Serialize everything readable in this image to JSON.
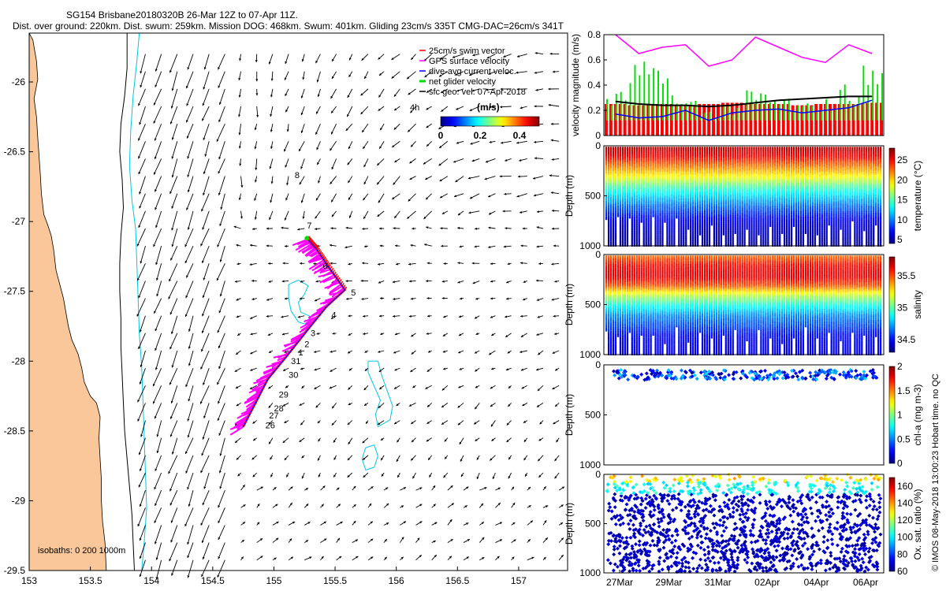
{
  "title_line1": "SG154 Brisbane20180320B 26-Mar 12Z to 07-Apr 11Z.",
  "title_line2": "Dist. over ground: 220km. Dist. swum: 259km. Mission DOG: 468km. Swum: 401km. Gliding 23cm/s 335T CMG-DAC=26cm/s 341T",
  "credit": "© IMOS 08-May-2018 13:00:23 Hobart time. no QC",
  "colors": {
    "land": "#F9C79A",
    "swim": "#ff0000",
    "gps": "#ff00ff",
    "dac": "#0000ff",
    "net": "#00dd00",
    "sfc": "#000000",
    "isobath200": "#000000",
    "isobath1000": "#00c8e0"
  },
  "chart_data": [
    {
      "id": "map",
      "type": "scatter",
      "x_ticks": [
        "153",
        "153.5",
        "154",
        "154.5",
        "155",
        "155.5",
        "156",
        "156.5",
        "157"
      ],
      "y_ticks": [
        "-26",
        "-26.5",
        "-27",
        "-27.5",
        "-28",
        "-28.5",
        "-29",
        "-29.5"
      ],
      "xlim": [
        153,
        157.4
      ],
      "ylim": [
        -29.5,
        -25.65
      ],
      "legend": [
        "25cm/s swim vector",
        "GPS surface velocity",
        "dive-avg current veloc.",
        "net glider velocity",
        "sfc geo. vel. 07-Apr-2018"
      ],
      "legend_placement": "top-right",
      "speed_colorbar": {
        "label": "(m/s)",
        "ticks": [
          "0",
          "0.2",
          "0.4"
        ],
        "range": [
          0,
          0.5
        ]
      },
      "annotation_4h": "4h",
      "isobaths_label": "isobaths: 0   200   1000m",
      "day_labels": [
        {
          "t": "8",
          "x": 155.17,
          "y": -26.69
        },
        {
          "t": "7",
          "x": 155.27,
          "y": -27.05
        },
        {
          "t": "6",
          "x": 155.4,
          "y": -27.34
        },
        {
          "t": "5",
          "x": 155.63,
          "y": -27.53
        },
        {
          "t": "4",
          "x": 155.47,
          "y": -27.69
        },
        {
          "t": "3",
          "x": 155.3,
          "y": -27.82
        },
        {
          "t": "2",
          "x": 155.25,
          "y": -27.9
        },
        {
          "t": "1",
          "x": 155.2,
          "y": -27.96
        },
        {
          "t": "31",
          "x": 155.14,
          "y": -28.02
        },
        {
          "t": "30",
          "x": 155.12,
          "y": -28.12
        },
        {
          "t": "29",
          "x": 155.04,
          "y": -28.26
        },
        {
          "t": "28",
          "x": 155.0,
          "y": -28.36
        },
        {
          "t": "27",
          "x": 154.96,
          "y": -28.41
        },
        {
          "t": "26",
          "x": 154.93,
          "y": -28.48
        }
      ],
      "track": [
        [
          154.75,
          -28.47
        ],
        [
          154.85,
          -28.3
        ],
        [
          154.95,
          -28.13
        ],
        [
          155.1,
          -27.97
        ],
        [
          155.3,
          -27.75
        ],
        [
          155.43,
          -27.61
        ],
        [
          155.58,
          -27.49
        ],
        [
          155.45,
          -27.33
        ],
        [
          155.35,
          -27.2
        ],
        [
          155.27,
          -27.12
        ]
      ],
      "coastline": [
        [
          153.03,
          -25.7
        ],
        [
          153.06,
          -25.85
        ],
        [
          153.07,
          -25.98
        ],
        [
          153.04,
          -26.12
        ],
        [
          153.06,
          -26.25
        ],
        [
          153.07,
          -26.4
        ],
        [
          153.08,
          -26.52
        ],
        [
          153.09,
          -26.65
        ],
        [
          153.1,
          -26.8
        ],
        [
          153.12,
          -26.95
        ],
        [
          153.15,
          -27.02
        ],
        [
          153.18,
          -27.1
        ],
        [
          153.2,
          -27.2
        ],
        [
          153.22,
          -27.35
        ],
        [
          153.25,
          -27.45
        ],
        [
          153.28,
          -27.55
        ],
        [
          153.3,
          -27.65
        ],
        [
          153.32,
          -27.75
        ],
        [
          153.35,
          -27.85
        ],
        [
          153.4,
          -27.95
        ],
        [
          153.43,
          -28.05
        ],
        [
          153.45,
          -28.15
        ],
        [
          153.5,
          -28.25
        ],
        [
          153.55,
          -28.3
        ],
        [
          153.58,
          -28.4
        ],
        [
          153.57,
          -28.55
        ],
        [
          153.58,
          -28.7
        ],
        [
          153.59,
          -28.85
        ],
        [
          153.59,
          -29.0
        ],
        [
          153.6,
          -29.15
        ],
        [
          153.62,
          -29.3
        ],
        [
          153.63,
          -29.5
        ]
      ],
      "isobath_200": [
        [
          153.8,
          -25.65
        ],
        [
          153.8,
          -25.9
        ],
        [
          153.78,
          -26.1
        ],
        [
          153.75,
          -26.3
        ],
        [
          153.74,
          -26.5
        ],
        [
          153.76,
          -26.7
        ],
        [
          153.77,
          -26.9
        ],
        [
          153.75,
          -27.1
        ],
        [
          153.74,
          -27.3
        ],
        [
          153.74,
          -27.5
        ],
        [
          153.75,
          -27.7
        ],
        [
          153.75,
          -27.9
        ],
        [
          153.76,
          -28.1
        ],
        [
          153.77,
          -28.3
        ],
        [
          153.78,
          -28.5
        ],
        [
          153.8,
          -28.7
        ],
        [
          153.82,
          -28.9
        ],
        [
          153.84,
          -29.1
        ],
        [
          153.85,
          -29.3
        ],
        [
          153.86,
          -29.5
        ]
      ],
      "isobath_1000": [
        [
          153.9,
          -25.65
        ],
        [
          153.88,
          -25.85
        ],
        [
          153.85,
          -26.1
        ],
        [
          153.83,
          -26.35
        ],
        [
          153.82,
          -26.6
        ],
        [
          153.84,
          -26.85
        ],
        [
          153.87,
          -27.05
        ],
        [
          153.88,
          -27.3
        ],
        [
          153.89,
          -27.55
        ],
        [
          153.9,
          -27.8
        ],
        [
          153.92,
          -28.05
        ],
        [
          153.93,
          -28.3
        ],
        [
          153.94,
          -28.55
        ],
        [
          153.95,
          -28.8
        ],
        [
          153.96,
          -29.05
        ],
        [
          153.94,
          -29.3
        ],
        [
          153.92,
          -29.5
        ]
      ],
      "seamount_a": [
        [
          155.12,
          -27.45
        ],
        [
          155.2,
          -27.42
        ],
        [
          155.28,
          -27.46
        ],
        [
          155.25,
          -27.52
        ],
        [
          155.2,
          -27.58
        ],
        [
          155.22,
          -27.65
        ],
        [
          155.3,
          -27.68
        ],
        [
          155.28,
          -27.74
        ],
        [
          155.2,
          -27.72
        ],
        [
          155.14,
          -27.64
        ],
        [
          155.12,
          -27.55
        ],
        [
          155.12,
          -27.45
        ]
      ],
      "seamount_b": [
        [
          155.77,
          -28.0
        ],
        [
          155.85,
          -28.0
        ],
        [
          155.88,
          -28.1
        ],
        [
          155.92,
          -28.2
        ],
        [
          155.97,
          -28.32
        ],
        [
          155.95,
          -28.42
        ],
        [
          155.85,
          -28.47
        ],
        [
          155.83,
          -28.38
        ],
        [
          155.87,
          -28.28
        ],
        [
          155.82,
          -28.18
        ],
        [
          155.77,
          -28.08
        ],
        [
          155.77,
          -28.0
        ]
      ],
      "seamount_c": [
        [
          155.75,
          -28.62
        ],
        [
          155.82,
          -28.6
        ],
        [
          155.85,
          -28.68
        ],
        [
          155.82,
          -28.76
        ],
        [
          155.75,
          -28.78
        ],
        [
          155.72,
          -28.7
        ],
        [
          155.75,
          -28.62
        ]
      ]
    },
    {
      "id": "velocity_magnitude",
      "type": "bar",
      "ylabel": "velocity magnitude (m/s)",
      "ylim": [
        0,
        0.8
      ],
      "y_ticks": [
        "0",
        "0.2",
        "0.4",
        "0.6",
        "0.8"
      ],
      "series": [
        {
          "name": "25cm/s swim vector",
          "values": [
            0.25,
            0.24,
            0.25,
            0.24,
            0.25,
            0.26,
            0.25,
            0.25,
            0.24,
            0.25,
            0.25,
            0.26
          ]
        },
        {
          "name": "GPS surface velocity",
          "values": [
            0.8,
            0.65,
            0.7,
            0.72,
            0.55,
            0.6,
            0.78,
            0.7,
            0.62,
            0.58,
            0.72,
            0.65
          ]
        },
        {
          "name": "dive-avg current veloc.",
          "values": [
            0.17,
            0.14,
            0.15,
            0.2,
            0.12,
            0.18,
            0.2,
            0.21,
            0.18,
            0.2,
            0.22,
            0.28
          ]
        },
        {
          "name": "net glider velocity",
          "values": [
            0.3,
            0.5,
            0.45,
            0.25,
            0.18,
            0.22,
            0.3,
            0.27,
            0.22,
            0.25,
            0.35,
            0.48
          ]
        },
        {
          "name": "sfc geo. vel. 07-Apr-2018",
          "values": [
            0.27,
            0.25,
            0.24,
            0.24,
            0.23,
            0.24,
            0.26,
            0.28,
            0.29,
            0.3,
            0.31,
            0.31
          ]
        }
      ]
    },
    {
      "id": "temperature",
      "type": "heatmap",
      "ylabel": "Depth (m)",
      "y_ticks": [
        "0",
        "500",
        "1000"
      ],
      "ylim": [
        0,
        1000
      ],
      "colorbar_label": "temperature (°C)",
      "colorbar_ticks": [
        "5",
        "10",
        "15",
        "20",
        "25"
      ],
      "colorbar_range": [
        4,
        28
      ],
      "profile": [
        [
          0,
          27
        ],
        [
          100,
          25
        ],
        [
          200,
          22
        ],
        [
          300,
          19
        ],
        [
          400,
          15
        ],
        [
          500,
          12
        ],
        [
          600,
          9.5
        ],
        [
          700,
          7.5
        ],
        [
          800,
          6
        ],
        [
          1000,
          4.5
        ]
      ]
    },
    {
      "id": "salinity",
      "type": "heatmap",
      "ylabel": "Depth (m)",
      "y_ticks": [
        "0",
        "500",
        "1000"
      ],
      "ylim": [
        0,
        1000
      ],
      "colorbar_label": "salinity",
      "colorbar_ticks": [
        "34.5",
        "35",
        "35.5"
      ],
      "colorbar_range": [
        34.3,
        35.8
      ],
      "profile": [
        [
          0,
          35.45
        ],
        [
          100,
          35.6
        ],
        [
          200,
          35.65
        ],
        [
          300,
          35.5
        ],
        [
          400,
          35.15
        ],
        [
          500,
          34.9
        ],
        [
          600,
          34.7
        ],
        [
          800,
          34.5
        ],
        [
          1000,
          34.45
        ]
      ]
    },
    {
      "id": "chlorophyll",
      "type": "scatter",
      "ylabel": "Depth (m)",
      "y_ticks": [
        "0",
        "500",
        "1000"
      ],
      "ylim": [
        0,
        1000
      ],
      "colorbar_label": "chl-a (mg m-3)",
      "colorbar_ticks": [
        "0",
        "0.5",
        "1",
        "1.5",
        "2"
      ],
      "colorbar_range": [
        0,
        2
      ],
      "depth_range": [
        50,
        150
      ]
    },
    {
      "id": "oxygen",
      "type": "scatter",
      "ylabel": "Depth (m)",
      "y_ticks": [
        "0",
        "500",
        "1000"
      ],
      "ylim": [
        0,
        1000
      ],
      "colorbar_label": "Ox. sat. ratio (%)",
      "colorbar_ticks": [
        "60",
        "80",
        "100",
        "120",
        "140",
        "160"
      ],
      "colorbar_range": [
        60,
        170
      ],
      "x_ticks": [
        "27Mar",
        "29Mar",
        "31Mar",
        "02Apr",
        "04Apr",
        "06Apr"
      ]
    }
  ]
}
